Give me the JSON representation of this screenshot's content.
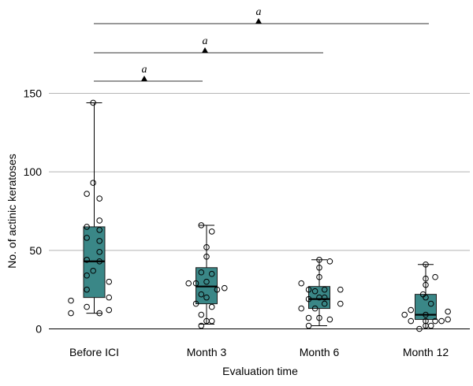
{
  "chart_data": {
    "type": "box",
    "xlabel": "Evaluation time",
    "ylabel": "No. of actinic keratoses",
    "ylim": [
      0,
      150
    ],
    "yticks": [
      0,
      50,
      100,
      150
    ],
    "grid": true,
    "box_color": "#3a8787",
    "categories": [
      "Before ICI",
      "Month 3",
      "Month 6",
      "Month 12"
    ],
    "boxes": [
      {
        "q1": 20,
        "median": 43,
        "q3": 65,
        "whisker_low": 10,
        "whisker_high": 144
      },
      {
        "q1": 16,
        "median": 27,
        "q3": 39,
        "whisker_low": 3,
        "whisker_high": 66
      },
      {
        "q1": 13,
        "median": 19,
        "q3": 27,
        "whisker_low": 2,
        "whisker_high": 44
      },
      {
        "q1": 6,
        "median": 9,
        "q3": 22,
        "whisker_low": 0,
        "whisker_high": 41
      }
    ],
    "points": [
      [
        {
          "dx": -0.44,
          "y": 18
        },
        {
          "dx": -0.44,
          "y": 10
        },
        {
          "dx": -0.14,
          "y": 86
        },
        {
          "dx": -0.14,
          "y": 65
        },
        {
          "dx": -0.14,
          "y": 58
        },
        {
          "dx": -0.14,
          "y": 44
        },
        {
          "dx": -0.14,
          "y": 34
        },
        {
          "dx": -0.14,
          "y": 25
        },
        {
          "dx": -0.14,
          "y": 14
        },
        {
          "dx": -0.02,
          "y": 144
        },
        {
          "dx": -0.02,
          "y": 93
        },
        {
          "dx": -0.02,
          "y": 37
        },
        {
          "dx": 0.1,
          "y": 83
        },
        {
          "dx": 0.1,
          "y": 69
        },
        {
          "dx": 0.1,
          "y": 63
        },
        {
          "dx": 0.1,
          "y": 56
        },
        {
          "dx": 0.1,
          "y": 49
        },
        {
          "dx": 0.1,
          "y": 43
        },
        {
          "dx": 0.1,
          "y": 10
        },
        {
          "dx": 0.28,
          "y": 30
        },
        {
          "dx": 0.28,
          "y": 20
        },
        {
          "dx": 0.28,
          "y": 12
        }
      ],
      [
        {
          "dx": -0.34,
          "y": 29
        },
        {
          "dx": -0.2,
          "y": 29
        },
        {
          "dx": -0.2,
          "y": 16
        },
        {
          "dx": -0.1,
          "y": 66
        },
        {
          "dx": -0.1,
          "y": 36
        },
        {
          "dx": -0.1,
          "y": 22
        },
        {
          "dx": -0.1,
          "y": 9
        },
        {
          "dx": -0.1,
          "y": 2
        },
        {
          "dx": 0.0,
          "y": 52
        },
        {
          "dx": 0.0,
          "y": 46
        },
        {
          "dx": 0.0,
          "y": 30
        },
        {
          "dx": 0.0,
          "y": 20
        },
        {
          "dx": 0.0,
          "y": 5
        },
        {
          "dx": 0.1,
          "y": 62
        },
        {
          "dx": 0.1,
          "y": 35
        },
        {
          "dx": 0.1,
          "y": 14
        },
        {
          "dx": 0.1,
          "y": 5
        },
        {
          "dx": 0.2,
          "y": 25
        },
        {
          "dx": 0.34,
          "y": 26
        }
      ],
      [
        {
          "dx": -0.34,
          "y": 29
        },
        {
          "dx": -0.34,
          "y": 13
        },
        {
          "dx": -0.2,
          "y": 25
        },
        {
          "dx": -0.2,
          "y": 19
        },
        {
          "dx": -0.2,
          "y": 7
        },
        {
          "dx": -0.2,
          "y": 2
        },
        {
          "dx": -0.08,
          "y": 24
        },
        {
          "dx": -0.08,
          "y": 13
        },
        {
          "dx": 0.0,
          "y": 44
        },
        {
          "dx": 0.0,
          "y": 39
        },
        {
          "dx": 0.0,
          "y": 33
        },
        {
          "dx": 0.0,
          "y": 20
        },
        {
          "dx": 0.0,
          "y": 7
        },
        {
          "dx": 0.1,
          "y": 25
        },
        {
          "dx": 0.1,
          "y": 20
        },
        {
          "dx": 0.1,
          "y": 16
        },
        {
          "dx": 0.2,
          "y": 43
        },
        {
          "dx": 0.2,
          "y": 6
        },
        {
          "dx": 0.4,
          "y": 25
        },
        {
          "dx": 0.4,
          "y": 16
        }
      ],
      [
        {
          "dx": -0.4,
          "y": 9
        },
        {
          "dx": -0.28,
          "y": 12
        },
        {
          "dx": -0.28,
          "y": 5
        },
        {
          "dx": -0.12,
          "y": 0
        },
        {
          "dx": -0.05,
          "y": 22
        },
        {
          "dx": 0.0,
          "y": 41
        },
        {
          "dx": 0.0,
          "y": 32
        },
        {
          "dx": 0.0,
          "y": 28
        },
        {
          "dx": 0.0,
          "y": 20
        },
        {
          "dx": 0.0,
          "y": 9
        },
        {
          "dx": 0.0,
          "y": 5
        },
        {
          "dx": 0.0,
          "y": 2
        },
        {
          "dx": 0.1,
          "y": 16
        },
        {
          "dx": 0.1,
          "y": 2
        },
        {
          "dx": 0.18,
          "y": 33
        },
        {
          "dx": 0.18,
          "y": 5
        },
        {
          "dx": 0.3,
          "y": 5
        },
        {
          "dx": 0.42,
          "y": 11
        },
        {
          "dx": 0.42,
          "y": 6
        }
      ]
    ],
    "significance": [
      {
        "from": 0,
        "to": 1,
        "label": "a"
      },
      {
        "from": 0,
        "to": 2,
        "label": "a"
      },
      {
        "from": 0,
        "to": 3,
        "label": "a"
      }
    ]
  }
}
